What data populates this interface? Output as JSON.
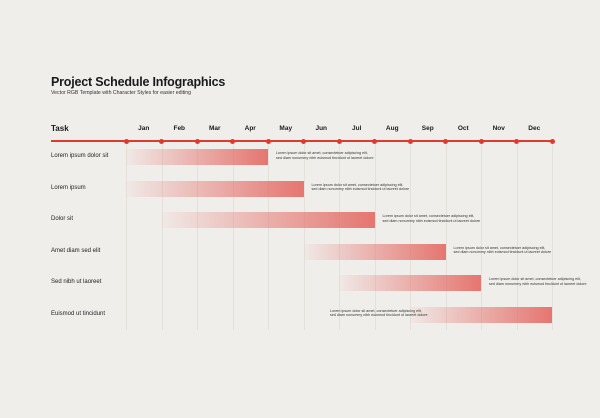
{
  "title": "Project Schedule Infographics",
  "subtitle": "Vector RGB Template with Character Styles for easier editing",
  "chart_data": {
    "type": "gantt",
    "axis_label": "Task",
    "categories": [
      "Jan",
      "Feb",
      "Mar",
      "Apr",
      "May",
      "Jun",
      "Jul",
      "Aug",
      "Sep",
      "Oct",
      "Nov",
      "Dec"
    ],
    "note_text": "Lorem ipsum dolor sit amet, consectetuer adipiscing elit, sed diam nonummy nibh euismod tincidunt ut laoreet dolore",
    "tasks": [
      {
        "name": "Lorem ipsum dolor sit",
        "start": 0,
        "end": 4,
        "note_side": "right"
      },
      {
        "name": "Lorem ipsum",
        "start": 0,
        "end": 5,
        "note_side": "right"
      },
      {
        "name": "Dolor sit",
        "start": 1,
        "end": 7,
        "note_side": "right"
      },
      {
        "name": "Amet diam sed elit",
        "start": 5,
        "end": 9,
        "note_side": "right"
      },
      {
        "name": "Sed nibh ut laoreet",
        "start": 6,
        "end": 10,
        "note_side": "right"
      },
      {
        "name": "Euismod ut tincidunt",
        "start": 8,
        "end": 12,
        "note_side": "left"
      }
    ]
  }
}
